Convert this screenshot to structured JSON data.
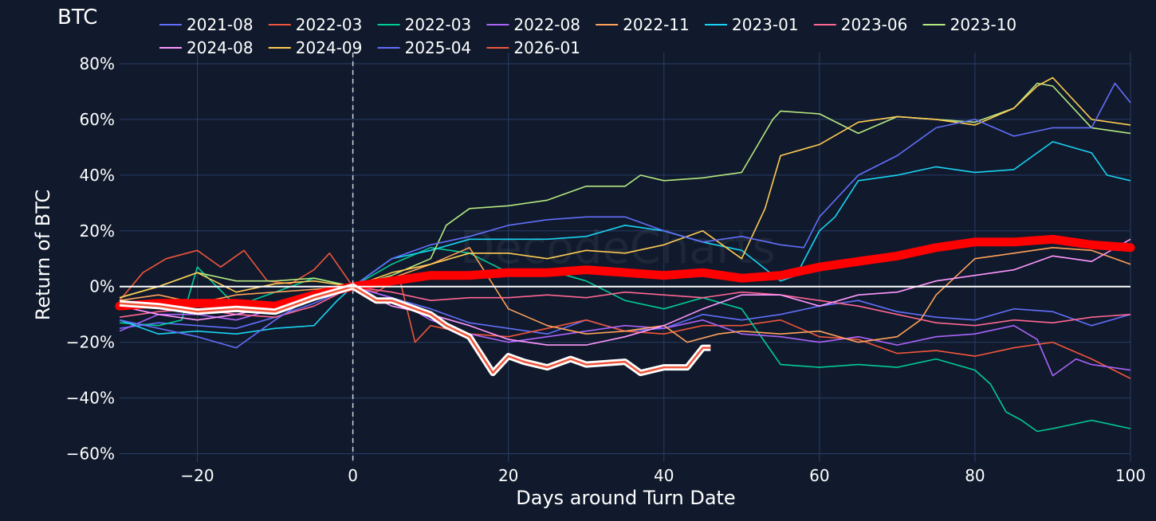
{
  "chart_data": {
    "type": "line",
    "title": "BTC",
    "xlabel": "Days around Turn Date",
    "ylabel": "Return of BTC",
    "watermark": "DecodeCharts",
    "xlim": [
      -30,
      100
    ],
    "ylim": [
      -63,
      84
    ],
    "xticks": [
      -20,
      0,
      20,
      40,
      60,
      80,
      100
    ],
    "xtick_labels": [
      "−20",
      "0",
      "20",
      "40",
      "60",
      "80",
      "100"
    ],
    "yticks": [
      -60,
      -40,
      -20,
      0,
      20,
      40,
      60,
      80
    ],
    "ytick_labels": [
      "−60%",
      "−40%",
      "−20%",
      "0%",
      "20%",
      "40%",
      "60%",
      "80%"
    ],
    "legend_position": "top",
    "reference_lines": {
      "x": 0,
      "y": 0
    },
    "series": [
      {
        "name": "2021-08",
        "color": "#636efa",
        "x": [
          -30,
          -25,
          -20,
          -15,
          -10,
          -5,
          0,
          5,
          10,
          15,
          20,
          25,
          30,
          35,
          40,
          45,
          50,
          55,
          60,
          65,
          70,
          75,
          80,
          85,
          90,
          95,
          100
        ],
        "y": [
          -15,
          -13,
          -14,
          -15,
          -11,
          -6,
          0,
          -4,
          -8,
          -13,
          -15,
          -17,
          -12,
          -16,
          -15,
          -10,
          -12,
          -10,
          -7,
          -5,
          -9,
          -11,
          -12,
          -8,
          -9,
          -14,
          -10
        ]
      },
      {
        "name": "2022-03",
        "color": "#ef553b",
        "x": [
          -30,
          -27,
          -24,
          -20,
          -17,
          -14,
          -11,
          -8,
          -5,
          -3,
          0,
          3,
          6,
          8,
          10,
          15,
          20,
          25,
          30,
          35,
          40,
          45,
          50,
          55,
          60,
          65,
          70,
          75,
          80,
          85,
          90,
          95,
          100
        ],
        "y": [
          -5,
          5,
          10,
          13,
          7,
          13,
          2,
          1,
          6,
          12,
          0,
          -2,
          3,
          -20,
          -14,
          -17,
          -18,
          -15,
          -12,
          -16,
          -17,
          -14,
          -14,
          -12,
          -18,
          -19,
          -24,
          -23,
          -25,
          -22,
          -20,
          -26,
          -33
        ]
      },
      {
        "name": "2022-03",
        "color": "#00cc96",
        "x": [
          -30,
          -25,
          -22,
          -20,
          -15,
          -10,
          -5,
          0,
          5,
          10,
          15,
          20,
          25,
          30,
          35,
          40,
          45,
          50,
          55,
          60,
          65,
          70,
          75,
          80,
          82,
          84,
          86,
          88,
          90,
          95,
          100
        ],
        "y": [
          -13,
          -14,
          -12,
          7,
          -7,
          -2,
          3,
          0,
          8,
          14,
          12,
          5,
          6,
          2,
          -5,
          -8,
          -4,
          -8,
          -28,
          -29,
          -28,
          -29,
          -26,
          -30,
          -35,
          -45,
          -48,
          -52,
          -51,
          -48,
          -51
        ]
      },
      {
        "name": "2022-08",
        "color": "#ab63fa",
        "x": [
          -30,
          -25,
          -20,
          -15,
          -10,
          -5,
          0,
          5,
          10,
          15,
          20,
          25,
          30,
          35,
          40,
          45,
          50,
          55,
          60,
          65,
          70,
          75,
          80,
          85,
          88,
          90,
          93,
          95,
          100
        ],
        "y": [
          -16,
          -10,
          -10,
          -12,
          -8,
          -3,
          0,
          -4,
          -12,
          -17,
          -20,
          -18,
          -16,
          -14,
          -15,
          -12,
          -17,
          -18,
          -20,
          -18,
          -21,
          -18,
          -17,
          -14,
          -19,
          -32,
          -26,
          -28,
          -30
        ]
      },
      {
        "name": "2022-11",
        "color": "#ffa15a",
        "x": [
          -30,
          -25,
          -20,
          -15,
          -10,
          -5,
          0,
          5,
          10,
          15,
          20,
          25,
          30,
          35,
          40,
          43,
          47,
          50,
          55,
          60,
          65,
          70,
          73,
          75,
          80,
          85,
          90,
          95,
          100
        ],
        "y": [
          -5,
          -3,
          -6,
          -3,
          -2,
          -1,
          0,
          3,
          8,
          14,
          -8,
          -14,
          -17,
          -16,
          -14,
          -20,
          -17,
          -16,
          -17,
          -16,
          -20,
          -18,
          -12,
          -3,
          10,
          12,
          14,
          13,
          8
        ]
      },
      {
        "name": "2023-01",
        "color": "#19d3f3",
        "x": [
          -30,
          -25,
          -20,
          -15,
          -10,
          -5,
          -2,
          0,
          5,
          10,
          15,
          20,
          25,
          30,
          35,
          40,
          45,
          50,
          55,
          57,
          60,
          62,
          65,
          70,
          75,
          80,
          85,
          90,
          95,
          97,
          100
        ],
        "y": [
          -12,
          -17,
          -16,
          -17,
          -15,
          -14,
          -5,
          0,
          10,
          13,
          17,
          17,
          17,
          18,
          22,
          20,
          16,
          13,
          2,
          4,
          20,
          25,
          38,
          40,
          43,
          41,
          42,
          52,
          48,
          40,
          38
        ]
      },
      {
        "name": "2023-06",
        "color": "#ff6692",
        "x": [
          -30,
          -25,
          -20,
          -15,
          -10,
          -5,
          0,
          5,
          10,
          15,
          20,
          25,
          30,
          35,
          40,
          45,
          50,
          55,
          60,
          65,
          70,
          75,
          80,
          85,
          90,
          95,
          100
        ],
        "y": [
          -11,
          -9,
          -8,
          -10,
          -11,
          -7,
          0,
          -2,
          -5,
          -4,
          -4,
          -3,
          -4,
          -2,
          -3,
          -4,
          -2,
          -3,
          -5,
          -7,
          -10,
          -13,
          -14,
          -12,
          -13,
          -11,
          -10
        ]
      },
      {
        "name": "2023-10",
        "color": "#b6e880",
        "x": [
          -30,
          -25,
          -20,
          -15,
          -10,
          -5,
          0,
          5,
          10,
          12,
          15,
          20,
          25,
          30,
          35,
          37,
          40,
          45,
          50,
          54,
          55,
          60,
          65,
          70,
          75,
          80,
          85,
          88,
          90,
          95,
          100
        ],
        "y": [
          -4,
          0,
          5,
          2,
          2,
          3,
          0,
          4,
          10,
          22,
          28,
          29,
          31,
          36,
          36,
          40,
          38,
          39,
          41,
          60,
          63,
          62,
          55,
          61,
          60,
          59,
          64,
          73,
          72,
          57,
          55
        ]
      },
      {
        "name": "2024-08",
        "color": "#ff97ff",
        "x": [
          -30,
          -25,
          -20,
          -15,
          -10,
          -5,
          0,
          5,
          10,
          15,
          20,
          25,
          30,
          35,
          40,
          45,
          50,
          55,
          60,
          65,
          70,
          75,
          80,
          85,
          90,
          95,
          100
        ],
        "y": [
          -7,
          -10,
          -12,
          -10,
          -7,
          -4,
          0,
          -7,
          -10,
          -14,
          -19,
          -21,
          -21,
          -18,
          -14,
          -8,
          -3,
          -3,
          -7,
          -3,
          -2,
          2,
          4,
          6,
          11,
          9,
          17
        ]
      },
      {
        "name": "2024-09",
        "color": "#fecb52",
        "x": [
          -30,
          -25,
          -20,
          -15,
          -10,
          -5,
          0,
          5,
          10,
          15,
          20,
          25,
          30,
          35,
          40,
          45,
          50,
          53,
          55,
          60,
          65,
          70,
          75,
          80,
          85,
          88,
          90,
          95,
          100
        ],
        "y": [
          -4,
          0,
          5,
          -2,
          1,
          2,
          0,
          5,
          8,
          12,
          12,
          10,
          13,
          12,
          15,
          20,
          10,
          28,
          47,
          51,
          59,
          61,
          60,
          58,
          64,
          72,
          75,
          60,
          58
        ]
      },
      {
        "name": "2025-04",
        "color": "#636efa",
        "x": [
          -30,
          -25,
          -20,
          -15,
          -10,
          -5,
          0,
          5,
          10,
          15,
          20,
          25,
          30,
          35,
          40,
          45,
          50,
          55,
          58,
          60,
          65,
          70,
          75,
          80,
          85,
          90,
          95,
          98,
          100
        ],
        "y": [
          -12,
          -15,
          -18,
          -22,
          -12,
          -3,
          0,
          10,
          15,
          18,
          22,
          24,
          25,
          25,
          20,
          16,
          18,
          15,
          14,
          25,
          40,
          47,
          57,
          60,
          54,
          57,
          57,
          73,
          66
        ]
      },
      {
        "name": "2026-01",
        "color": "#ef553b",
        "x": [
          -30,
          -25,
          -20,
          -15,
          -10,
          -5,
          0,
          3,
          5,
          8,
          10,
          12,
          15,
          18,
          20,
          22,
          25,
          28,
          30,
          35,
          37,
          40,
          43,
          45,
          46
        ],
        "y": [
          -6,
          -7,
          -9,
          -8,
          -9,
          -4,
          0,
          -5,
          -5,
          -8,
          -10,
          -14,
          -18,
          -31,
          -25,
          -27,
          -29,
          -26,
          -28,
          -27,
          -31,
          -29,
          -29,
          -22,
          -22
        ],
        "highlight": true,
        "highlight_color": "#ffffff"
      },
      {
        "name": "Mean",
        "color": "#ff0000",
        "emphasis": "thick",
        "show_in_legend": false,
        "x": [
          -30,
          -25,
          -20,
          -15,
          -10,
          -5,
          0,
          5,
          10,
          15,
          20,
          25,
          30,
          35,
          40,
          45,
          50,
          55,
          60,
          65,
          70,
          75,
          80,
          85,
          90,
          95,
          100
        ],
        "y": [
          -7,
          -6,
          -6,
          -6,
          -7,
          -3,
          0,
          2,
          4,
          4,
          5,
          5,
          6,
          5,
          4,
          5,
          3,
          4,
          7,
          9,
          11,
          14,
          16,
          16,
          17,
          15,
          14
        ]
      }
    ]
  }
}
